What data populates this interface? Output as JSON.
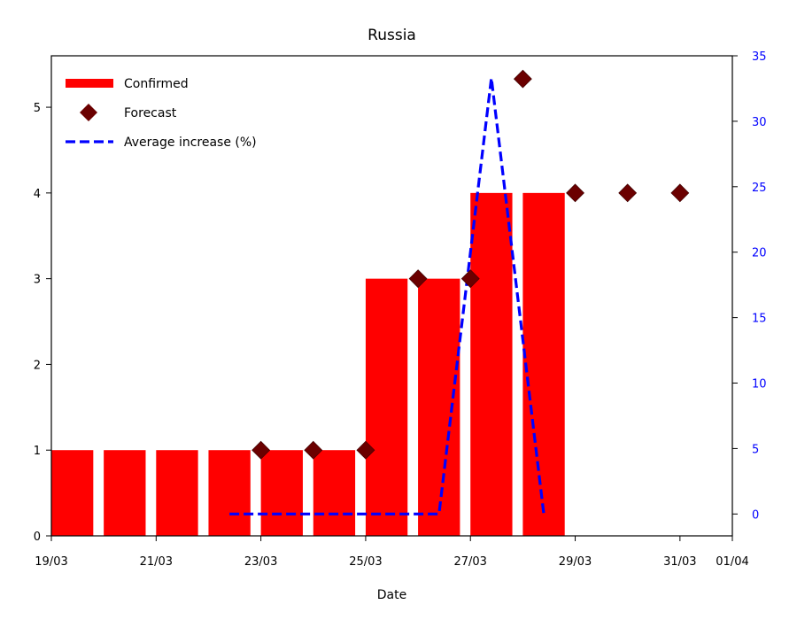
{
  "chart_data": {
    "type": "bar",
    "title": "Russia",
    "xlabel": "Date",
    "ylabel": "",
    "y2label": "",
    "x_ticks": [
      "19/03",
      "21/03",
      "23/03",
      "25/03",
      "27/03",
      "29/03",
      "31/03",
      "01/04"
    ],
    "x_tick_days": [
      19,
      21,
      23,
      25,
      27,
      29,
      31,
      32
    ],
    "xlim": [
      19,
      32
    ],
    "ylim": [
      0,
      5.6
    ],
    "y_ticks": [
      0,
      1,
      2,
      3,
      4,
      5
    ],
    "y2lim": [
      -1.67,
      35
    ],
    "y2_ticks": [
      0,
      5,
      10,
      15,
      20,
      25,
      30,
      35
    ],
    "legend_position": "upper-left",
    "colors": {
      "confirmed": "#ff0000",
      "forecast": "#6b0000",
      "average": "#0000ff",
      "right_axis": "#0000ff"
    },
    "series": [
      {
        "name": "Confirmed",
        "type": "bar",
        "x": [
          "19/03",
          "20/03",
          "21/03",
          "22/03",
          "23/03",
          "24/03",
          "25/03",
          "26/03",
          "27/03",
          "28/03"
        ],
        "x_day": [
          19,
          20,
          21,
          22,
          23,
          24,
          25,
          26,
          27,
          28
        ],
        "values": [
          1,
          1,
          1,
          1,
          1,
          1,
          3,
          3,
          4,
          4
        ]
      },
      {
        "name": "Forecast",
        "type": "scatter",
        "x": [
          "23/03",
          "24/03",
          "25/03",
          "26/03",
          "27/03",
          "28/03",
          "29/03",
          "30/03",
          "31/03"
        ],
        "x_day": [
          23,
          24,
          25,
          26,
          27,
          28,
          29,
          30,
          31
        ],
        "values": [
          1,
          1,
          1,
          3,
          3,
          5.33,
          4,
          4,
          4
        ]
      },
      {
        "name": "Average increase (%)",
        "type": "line",
        "axis": "right",
        "x": [
          "22/03",
          "23/03",
          "24/03",
          "25/03",
          "26/03",
          "27/03",
          "28/03"
        ],
        "x_day": [
          22,
          23,
          24,
          25,
          26,
          27,
          28
        ],
        "values": [
          0,
          0,
          0,
          0,
          0,
          33.3,
          0
        ]
      }
    ]
  }
}
